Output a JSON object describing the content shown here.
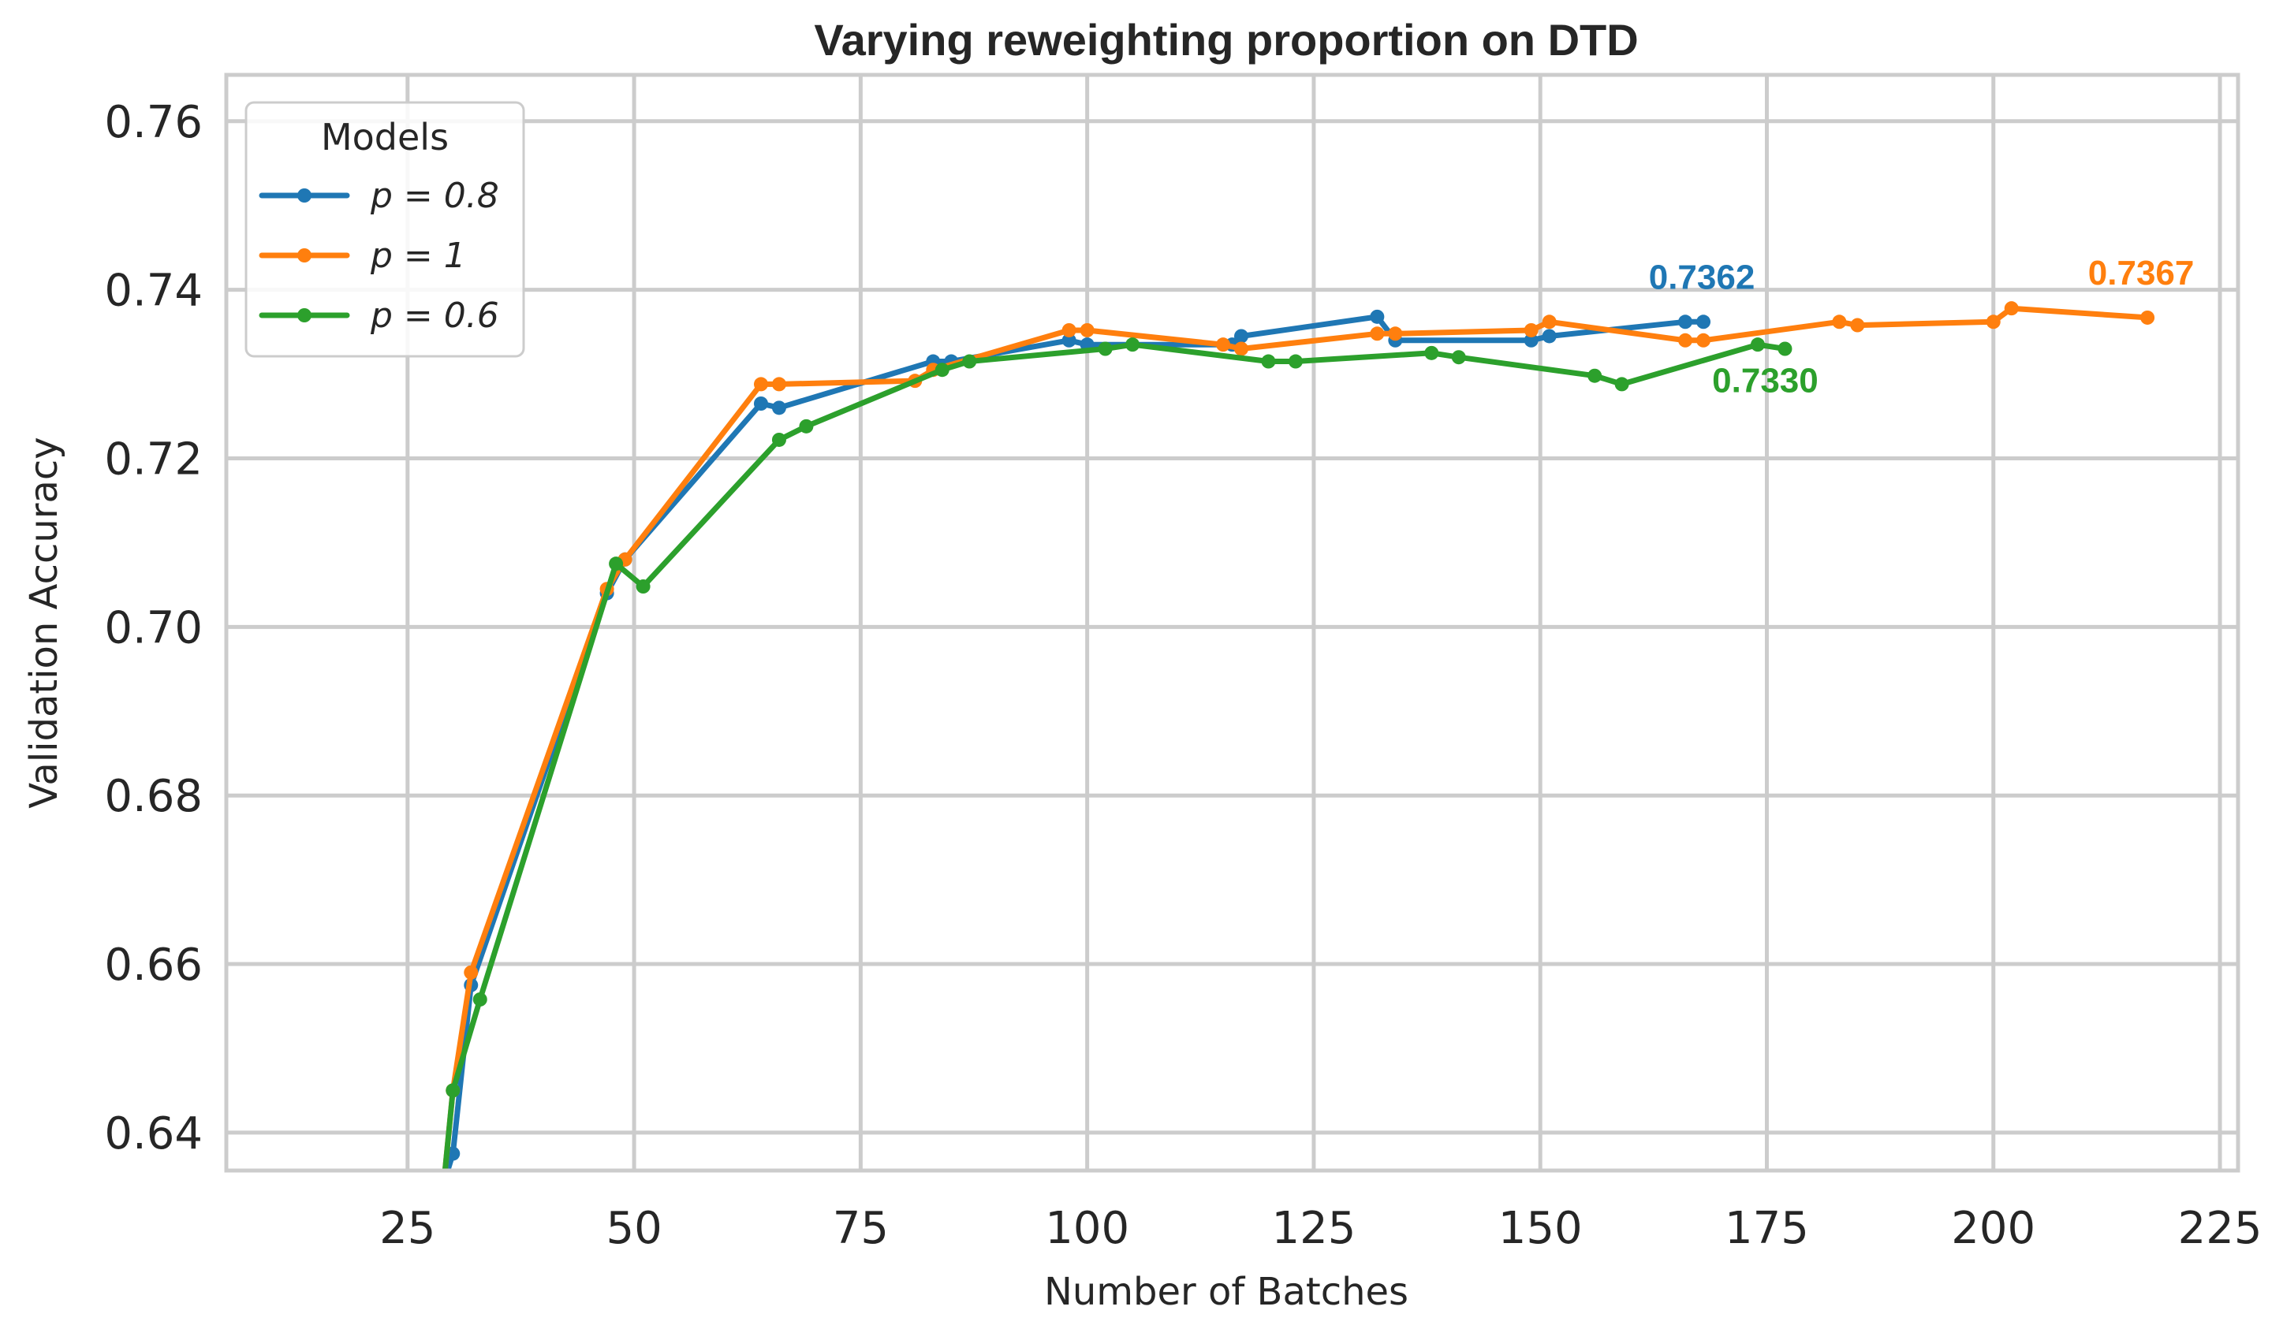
{
  "chart_data": {
    "type": "line",
    "title": "Varying reweighting proportion on DTD",
    "xlabel": "Number of Batches",
    "ylabel": "Validation Accuracy",
    "xlim": [
      5,
      227
    ],
    "ylim": [
      0.6355,
      0.7655
    ],
    "xticks": [
      25,
      50,
      75,
      100,
      125,
      150,
      175,
      200,
      225
    ],
    "xtick_labels": [
      "25",
      "50",
      "75",
      "100",
      "125",
      "150",
      "175",
      "200",
      "225"
    ],
    "yticks": [
      0.64,
      0.66,
      0.68,
      0.7,
      0.72,
      0.74,
      0.76
    ],
    "ytick_labels": [
      "0.64",
      "0.66",
      "0.68",
      "0.70",
      "0.72",
      "0.74",
      "0.76"
    ],
    "grid": true,
    "legend": {
      "title": "Models",
      "position": "top-left",
      "entries": [
        "p = 0.8",
        "p = 1",
        "p = 0.6"
      ]
    },
    "series": [
      {
        "name": "p = 0.8",
        "color": "#1f77b4",
        "x": [
          29,
          30,
          32,
          47,
          49,
          64,
          66,
          83,
          85,
          98,
          100,
          116,
          117,
          132,
          134,
          149,
          151,
          166,
          168
        ],
        "y": [
          0.634,
          0.6375,
          0.6575,
          0.704,
          0.708,
          0.7265,
          0.726,
          0.7315,
          0.7315,
          0.734,
          0.7335,
          0.7335,
          0.7345,
          0.7368,
          0.734,
          0.734,
          0.7345,
          0.7362,
          0.7362
        ]
      },
      {
        "name": "p = 1",
        "color": "#ff7f0e",
        "x": [
          29,
          30,
          32,
          47,
          49,
          64,
          66,
          81,
          83,
          98,
          100,
          115,
          117,
          132,
          134,
          149,
          151,
          166,
          168,
          183,
          185,
          200,
          202,
          217
        ],
        "y": [
          0.634,
          0.645,
          0.659,
          0.7045,
          0.708,
          0.7288,
          0.7288,
          0.7292,
          0.7305,
          0.7352,
          0.7352,
          0.7335,
          0.733,
          0.7348,
          0.7348,
          0.7352,
          0.7362,
          0.734,
          0.734,
          0.7362,
          0.7358,
          0.7362,
          0.7378,
          0.7367
        ]
      },
      {
        "name": "p = 0.6",
        "color": "#2ca02c",
        "x": [
          29,
          30,
          33,
          48,
          51,
          66,
          69,
          84,
          87,
          102,
          105,
          120,
          123,
          138,
          141,
          156,
          159,
          174,
          177
        ],
        "y": [
          0.634,
          0.645,
          0.6558,
          0.7075,
          0.7048,
          0.7222,
          0.7238,
          0.7305,
          0.7315,
          0.733,
          0.7335,
          0.7315,
          0.7315,
          0.7325,
          0.732,
          0.7298,
          0.7288,
          0.7335,
          0.733
        ]
      }
    ],
    "annotations": [
      {
        "text": "0.7362",
        "series": "p = 0.8",
        "color": "#1f77b4",
        "x": 168,
        "y": 0.7362
      },
      {
        "text": "0.7367",
        "series": "p = 1",
        "color": "#ff7f0e",
        "x": 217,
        "y": 0.7367
      },
      {
        "text": "0.7330",
        "series": "p = 0.6",
        "color": "#2ca02c",
        "x": 177,
        "y": 0.733
      }
    ]
  }
}
